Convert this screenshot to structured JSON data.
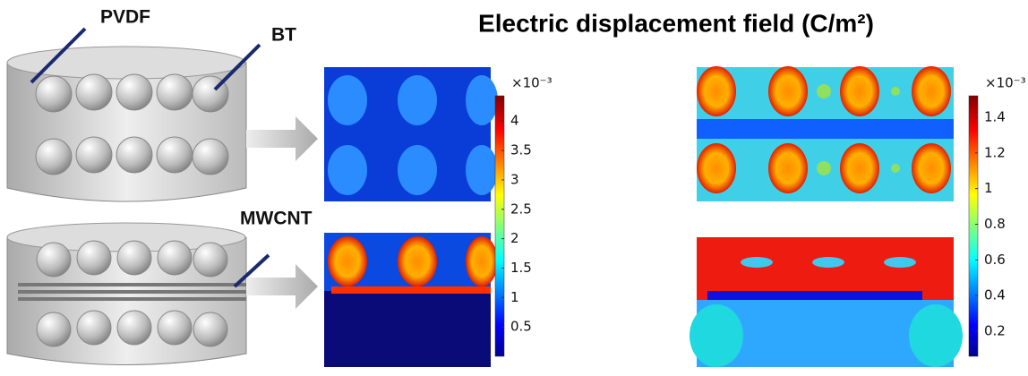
{
  "title": "Electric displacement field (C/m²)",
  "labels": {
    "pvdf": "PVDF",
    "bt": "BT",
    "mwcnt": "MWCNT"
  },
  "colorbars": [
    {
      "exponent": "×10⁻³",
      "lim": [
        0,
        4.43
      ],
      "ticks": [
        4,
        3.5,
        3,
        2.5,
        2,
        1.5,
        1,
        0.5
      ]
    },
    {
      "exponent": "×10⁻³",
      "lim": [
        0.06,
        1.52
      ],
      "ticks": [
        1.4,
        1.2,
        1,
        0.8,
        0.6,
        0.4,
        0.2
      ]
    }
  ]
}
